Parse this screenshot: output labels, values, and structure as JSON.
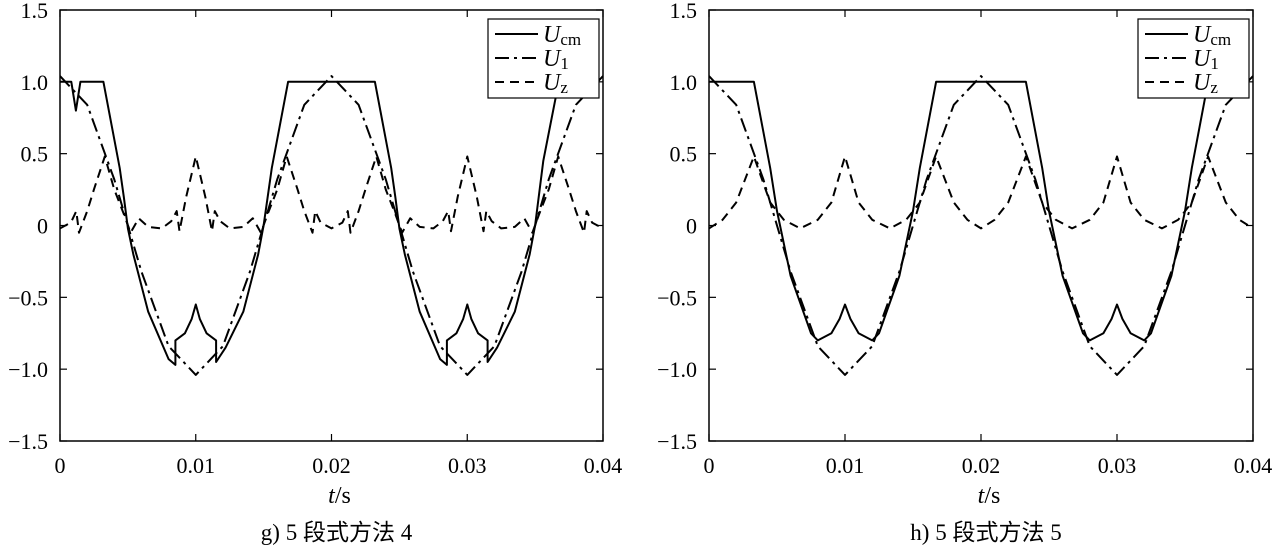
{
  "chart_data": [
    {
      "type": "line",
      "caption": "g) 5 段式方法 4",
      "xlabel": "t",
      "xlabel_unit": "/s",
      "ylabel": "",
      "xlim": [
        0,
        0.04
      ],
      "ylim": [
        -1.5,
        1.5
      ],
      "xticks": [
        "0",
        "0.01",
        "0.02",
        "0.03",
        "0.04"
      ],
      "yticks": [
        "1.5",
        "1.0",
        "0.5",
        "0",
        "-0.5",
        "-1.0",
        "-1.5"
      ],
      "legend_position": "top-right",
      "legend": [
        {
          "main": "U",
          "sub": "cm",
          "style": "solid"
        },
        {
          "main": "U",
          "sub": "1",
          "style": "dash-dot"
        },
        {
          "main": "U",
          "sub": "z",
          "style": "dashed"
        }
      ],
      "series": [
        {
          "style": "solid",
          "x": [
            0,
            0.00083,
            0.00117,
            0.0015,
            0.0016,
            0.00175,
            0.0032,
            0.0044,
            0.0047,
            0.005,
            0.0054,
            0.0065,
            0.008,
            0.0085,
            0.0085,
            0.0092,
            0.0097,
            0.01,
            0.0103,
            0.0108,
            0.0115,
            0.0115,
            0.0122,
            0.0135,
            0.0146,
            0.015,
            0.0153,
            0.0156,
            0.0168,
            0.0184,
            0.0185,
            0.0215,
            0.0216,
            0.0232,
            0.0244,
            0.0247,
            0.025,
            0.0254,
            0.0265,
            0.028,
            0.0285,
            0.0285,
            0.0292,
            0.0297,
            0.03,
            0.0303,
            0.0308,
            0.0315,
            0.0315,
            0.0322,
            0.0335,
            0.0346,
            0.035,
            0.0356,
            0.0366,
            0.037
          ],
          "y": [
            1.0,
            1.0,
            0.8,
            1.0,
            1.0,
            1.0,
            1.0,
            0.4,
            0.2,
            -0.02,
            -0.2,
            -0.6,
            -0.93,
            -0.97,
            -0.8,
            -0.75,
            -0.65,
            -0.55,
            -0.65,
            -0.75,
            -0.8,
            -0.95,
            -0.85,
            -0.6,
            -0.2,
            0.0,
            0.2,
            0.4,
            1.0,
            1.0,
            1.0,
            1.0,
            1.0,
            1.0,
            0.4,
            0.2,
            -0.02,
            -0.2,
            -0.6,
            -0.93,
            -0.97,
            -0.8,
            -0.75,
            -0.65,
            -0.55,
            -0.65,
            -0.75,
            -0.8,
            -0.95,
            -0.85,
            -0.6,
            -0.2,
            0.0,
            0.45,
            0.93,
            1.0
          ]
        },
        {
          "style": "dash-dot",
          "x": [
            0,
            0.002,
            0.004,
            0.006,
            0.008,
            0.01,
            0.012,
            0.014,
            0.016,
            0.018,
            0.02,
            0.022,
            0.024,
            0.026,
            0.028,
            0.03,
            0.032,
            0.034,
            0.036,
            0.038,
            0.04
          ],
          "y": [
            1.04,
            0.84,
            0.32,
            -0.32,
            -0.84,
            -1.04,
            -0.84,
            -0.32,
            0.32,
            0.84,
            1.04,
            0.84,
            0.32,
            -0.32,
            -0.84,
            -1.04,
            -0.84,
            -0.32,
            0.32,
            0.84,
            1.04
          ]
        },
        {
          "style": "dashed",
          "x": [
            0,
            0.0008,
            0.0012,
            0.0014,
            0.002,
            0.0025,
            0.0033,
            0.004,
            0.0047,
            0.0052,
            0.0058,
            0.0065,
            0.0075,
            0.0082,
            0.0086,
            0.0088,
            0.0093,
            0.01,
            0.0107,
            0.0112,
            0.0114,
            0.0118,
            0.0125,
            0.0135,
            0.0142,
            0.0148,
            0.0153,
            0.016,
            0.0167,
            0.0175,
            0.018,
            0.0186,
            0.0188,
            0.0192,
            0.02,
            0.0208,
            0.0212,
            0.0214,
            0.022,
            0.0225,
            0.0233,
            0.024,
            0.0247,
            0.0252,
            0.0258,
            0.0265,
            0.0275,
            0.0282,
            0.0286,
            0.0288,
            0.0293,
            0.03,
            0.0307,
            0.0312,
            0.0314,
            0.0318,
            0.0325,
            0.0335,
            0.0342,
            0.0348,
            0.0353,
            0.036,
            0.0367,
            0.0375,
            0.038,
            0.0386,
            0.0388,
            0.0392,
            0.04
          ],
          "y": [
            -0.02,
            0.02,
            0.1,
            -0.05,
            0.1,
            0.25,
            0.48,
            0.25,
            0.08,
            -0.05,
            0.05,
            -0.01,
            -0.02,
            0.03,
            0.1,
            -0.04,
            0.2,
            0.48,
            0.2,
            -0.04,
            0.1,
            0.03,
            -0.02,
            -0.01,
            0.05,
            -0.05,
            0.08,
            0.25,
            0.48,
            0.25,
            0.1,
            -0.05,
            0.1,
            0.02,
            -0.02,
            0.02,
            0.1,
            -0.05,
            0.1,
            0.25,
            0.48,
            0.25,
            0.08,
            -0.05,
            0.05,
            -0.01,
            -0.02,
            0.03,
            0.1,
            -0.04,
            0.2,
            0.48,
            0.2,
            -0.04,
            0.1,
            0.03,
            -0.02,
            -0.01,
            0.05,
            -0.05,
            0.08,
            0.25,
            0.48,
            0.25,
            0.1,
            -0.05,
            0.1,
            0.02,
            -0.02
          ]
        }
      ]
    },
    {
      "type": "line",
      "caption": "h) 5 段式方法 5",
      "xlabel": "t",
      "xlabel_unit": "/s",
      "ylabel": "",
      "xlim": [
        0,
        0.04
      ],
      "ylim": [
        -1.5,
        1.5
      ],
      "xticks": [
        "0",
        "0.01",
        "0.02",
        "0.03",
        "0.04"
      ],
      "yticks": [
        "1.5",
        "1.0",
        "0.5",
        "0",
        "-0.5",
        "-1.0",
        "-1.5"
      ],
      "legend_position": "top-right",
      "legend": [
        {
          "main": "U",
          "sub": "cm",
          "style": "solid"
        },
        {
          "main": "U",
          "sub": "1",
          "style": "dash-dot"
        },
        {
          "main": "U",
          "sub": "z",
          "style": "dashed"
        }
      ],
      "series": [
        {
          "style": "solid",
          "x": [
            0,
            0.0033,
            0.0045,
            0.005,
            0.006,
            0.0075,
            0.008,
            0.009,
            0.0096,
            0.01,
            0.0104,
            0.011,
            0.012,
            0.0125,
            0.014,
            0.015,
            0.0155,
            0.0167,
            0.0233,
            0.0245,
            0.025,
            0.026,
            0.0275,
            0.028,
            0.029,
            0.0296,
            0.03,
            0.0304,
            0.031,
            0.032,
            0.0325,
            0.034,
            0.035,
            0.0355,
            0.0367,
            0.037
          ],
          "y": [
            1.0,
            1.0,
            0.4,
            0.1,
            -0.35,
            -0.75,
            -0.8,
            -0.75,
            -0.65,
            -0.55,
            -0.65,
            -0.75,
            -0.8,
            -0.75,
            -0.35,
            0.1,
            0.4,
            1.0,
            1.0,
            0.4,
            0.1,
            -0.35,
            -0.75,
            -0.8,
            -0.75,
            -0.65,
            -0.55,
            -0.65,
            -0.75,
            -0.8,
            -0.75,
            -0.35,
            0.1,
            0.4,
            1.0,
            1.0
          ]
        },
        {
          "style": "dash-dot",
          "x": [
            0,
            0.002,
            0.004,
            0.006,
            0.008,
            0.01,
            0.012,
            0.014,
            0.016,
            0.018,
            0.02,
            0.022,
            0.024,
            0.026,
            0.028,
            0.03,
            0.032,
            0.034,
            0.036,
            0.038,
            0.04
          ],
          "y": [
            1.04,
            0.84,
            0.32,
            -0.32,
            -0.84,
            -1.04,
            -0.84,
            -0.32,
            0.32,
            0.84,
            1.04,
            0.84,
            0.32,
            -0.32,
            -0.84,
            -1.04,
            -0.84,
            -0.32,
            0.32,
            0.84,
            1.04
          ]
        },
        {
          "style": "dashed",
          "x": [
            0,
            0.001,
            0.002,
            0.0033,
            0.0045,
            0.0055,
            0.0067,
            0.008,
            0.009,
            0.01,
            0.011,
            0.012,
            0.0133,
            0.0145,
            0.0155,
            0.0167,
            0.018,
            0.019,
            0.02,
            0.021,
            0.022,
            0.0233,
            0.0245,
            0.0255,
            0.0267,
            0.028,
            0.029,
            0.03,
            0.031,
            0.032,
            0.0333,
            0.0345,
            0.0355,
            0.0367,
            0.038,
            0.039,
            0.04
          ],
          "y": [
            -0.02,
            0.04,
            0.16,
            0.48,
            0.16,
            0.04,
            -0.02,
            0.04,
            0.16,
            0.48,
            0.16,
            0.04,
            -0.02,
            0.04,
            0.16,
            0.48,
            0.16,
            0.04,
            -0.02,
            0.04,
            0.16,
            0.48,
            0.16,
            0.04,
            -0.02,
            0.04,
            0.16,
            0.48,
            0.16,
            0.04,
            -0.02,
            0.04,
            0.16,
            0.48,
            0.16,
            0.04,
            -0.02
          ]
        }
      ]
    }
  ]
}
